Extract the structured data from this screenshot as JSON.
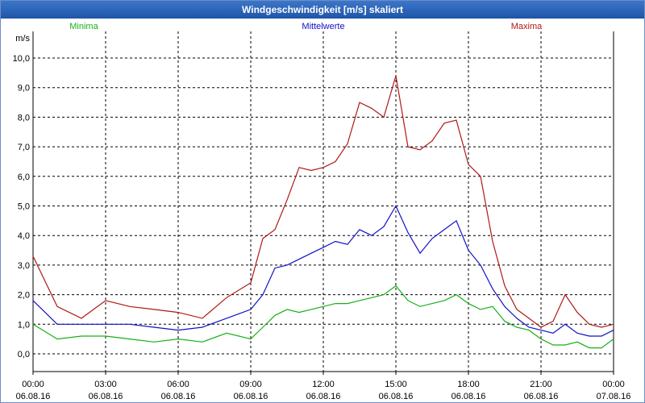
{
  "window": {
    "title": "Windgeschwindigkeit [m/s] skaliert"
  },
  "colors": {
    "minima": "#18b018",
    "mean": "#1010c8",
    "maxima": "#b01818",
    "grid": "#000000",
    "title_bar": "#2a62b8"
  },
  "chart_data": {
    "type": "line",
    "ylabel": "m/s",
    "ylim": [
      -0.6,
      10.9
    ],
    "yticks": [
      "0,0",
      "1,0",
      "2,0",
      "3,0",
      "4,0",
      "5,0",
      "6,0",
      "7,0",
      "8,0",
      "9,0",
      "10,0"
    ],
    "xlim_hours": [
      0,
      24
    ],
    "xticks": [
      {
        "time": "00:00",
        "date": "06.08.16"
      },
      {
        "time": "03:00",
        "date": "06.08.16"
      },
      {
        "time": "06:00",
        "date": "06.08.16"
      },
      {
        "time": "09:00",
        "date": "06.08.16"
      },
      {
        "time": "12:00",
        "date": "06.08.16"
      },
      {
        "time": "15:00",
        "date": "06.08.16"
      },
      {
        "time": "18:00",
        "date": "06.08.16"
      },
      {
        "time": "21:00",
        "date": "06.08.16"
      },
      {
        "time": "00:00",
        "date": "07.08.16"
      }
    ],
    "grid": true,
    "legend_placement": "top",
    "x_hours": [
      0,
      1,
      2,
      3,
      4,
      5,
      6,
      7,
      8,
      9,
      9.5,
      10,
      10.5,
      11,
      11.5,
      12,
      12.5,
      13,
      13.5,
      14,
      14.5,
      15,
      15.5,
      16,
      16.5,
      17,
      17.5,
      18,
      18.5,
      19,
      19.5,
      20,
      20.5,
      21,
      21.5,
      22,
      22.5,
      23,
      23.5,
      24
    ],
    "series": [
      {
        "name": "Minima",
        "color": "#18b018",
        "values": [
          1.0,
          0.5,
          0.6,
          0.6,
          0.5,
          0.4,
          0.5,
          0.4,
          0.7,
          0.5,
          0.9,
          1.3,
          1.5,
          1.4,
          1.5,
          1.6,
          1.7,
          1.7,
          1.8,
          1.9,
          2.0,
          2.3,
          1.8,
          1.6,
          1.7,
          1.8,
          2.0,
          1.7,
          1.5,
          1.6,
          1.1,
          0.9,
          0.8,
          0.5,
          0.3,
          0.3,
          0.4,
          0.2,
          0.2,
          0.5
        ]
      },
      {
        "name": "Mittelwerte",
        "color": "#1010c8",
        "values": [
          1.8,
          1.0,
          1.0,
          1.0,
          1.0,
          0.9,
          0.8,
          0.9,
          1.2,
          1.5,
          2.0,
          2.9,
          3.0,
          3.2,
          3.4,
          3.6,
          3.8,
          3.7,
          4.2,
          4.0,
          4.3,
          5.0,
          4.1,
          3.4,
          3.9,
          4.2,
          4.5,
          3.5,
          3.0,
          2.2,
          1.6,
          1.2,
          0.9,
          0.8,
          0.7,
          1.0,
          0.7,
          0.6,
          0.6,
          0.8
        ]
      },
      {
        "name": "Maxima",
        "color": "#b01818",
        "values": [
          3.3,
          1.6,
          1.2,
          1.8,
          1.6,
          1.5,
          1.4,
          1.2,
          1.9,
          2.4,
          3.9,
          4.2,
          5.2,
          6.3,
          6.2,
          6.3,
          6.5,
          7.1,
          8.5,
          8.3,
          8.0,
          9.4,
          7.0,
          6.9,
          7.2,
          7.8,
          7.9,
          6.4,
          6.0,
          3.8,
          2.3,
          1.5,
          1.2,
          0.9,
          1.1,
          2.0,
          1.4,
          1.0,
          0.9,
          1.0
        ]
      }
    ]
  }
}
